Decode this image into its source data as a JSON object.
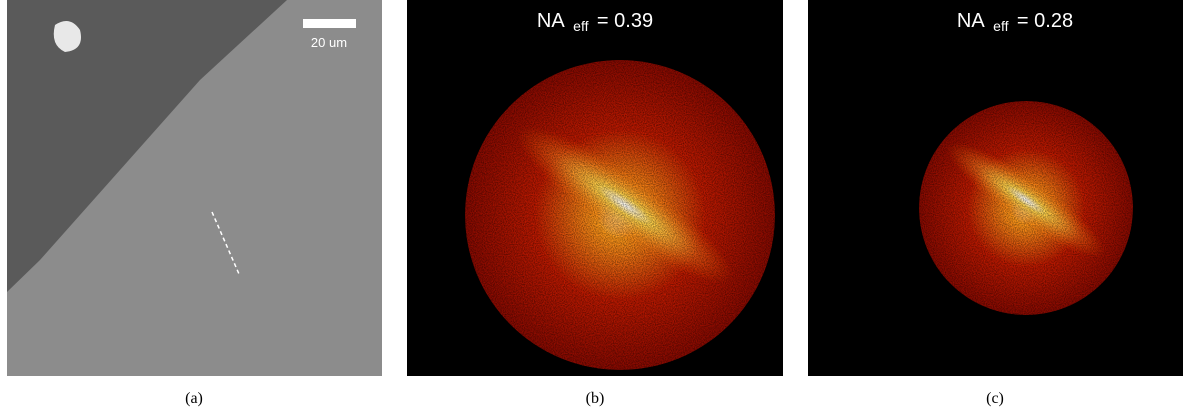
{
  "panels": [
    {
      "caption": "(a)",
      "scale_bar": "20 um"
    },
    {
      "caption": "(b)",
      "annotation": {
        "text": "NA",
        "subscript": "eff",
        "value": "= 0.39"
      }
    },
    {
      "caption": "(c)",
      "annotation": {
        "text": "NA",
        "subscript": "eff",
        "value": "= 0.28"
      }
    }
  ]
}
